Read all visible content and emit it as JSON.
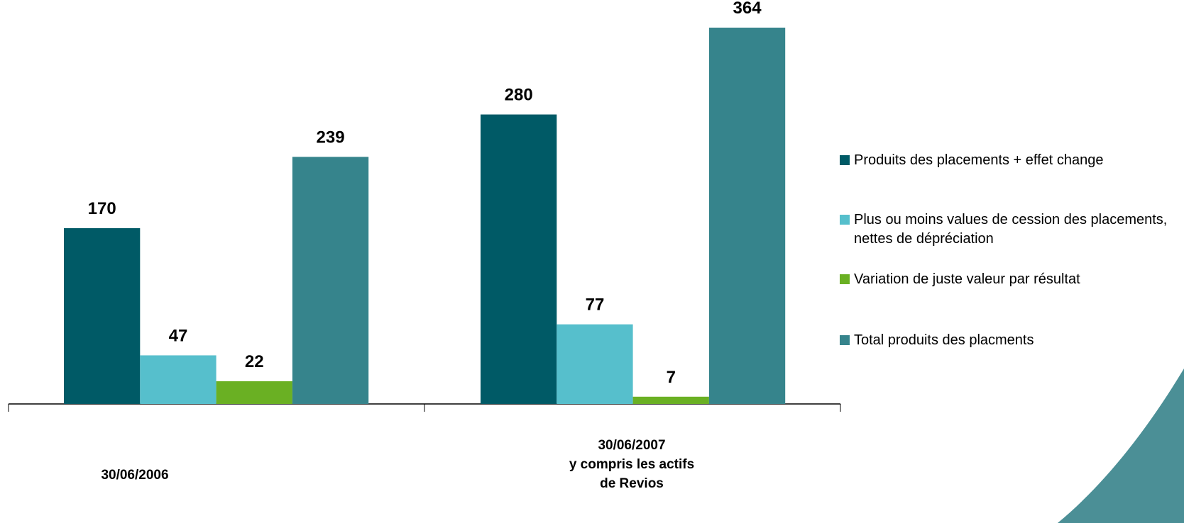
{
  "chart_data": {
    "type": "bar",
    "categories": [
      "30/06/2006",
      "30/06/2007\ny compris les actifs\nde Revios"
    ],
    "series": [
      {
        "name": "Produits des placements + effet change",
        "color": "#005a66",
        "values": [
          170,
          280
        ]
      },
      {
        "name": "Plus ou moins values de cession des placements, nettes de dépréciation",
        "color": "#56bfcc",
        "values": [
          47,
          77
        ]
      },
      {
        "name": "Variation de juste valeur par résultat",
        "color": "#6ab023",
        "values": [
          22,
          7
        ]
      },
      {
        "name": "Total produits des placments",
        "color": "#36848c",
        "values": [
          239,
          364
        ]
      }
    ],
    "legend": "right"
  }
}
